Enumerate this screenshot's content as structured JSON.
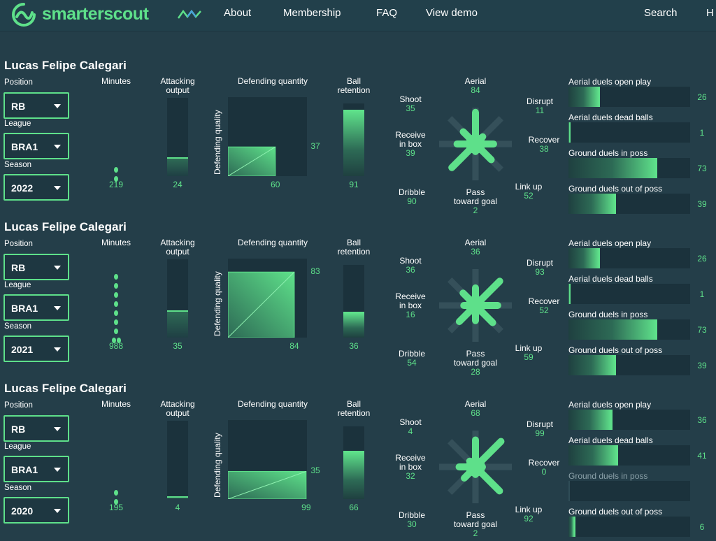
{
  "brand": {
    "name": "smarterscout",
    "color": "#5ee08a"
  },
  "nav": {
    "items": [
      "About",
      "Membership",
      "FAQ",
      "View demo"
    ],
    "right": [
      "Search",
      "H"
    ]
  },
  "labels": {
    "position": "Position",
    "league": "League",
    "season": "Season",
    "minutes": "Minutes",
    "attacking1": "Attacking",
    "attacking2": "output",
    "defqty": "Defending quantity",
    "defqual": "Defending quality",
    "ball1": "Ball",
    "ball2": "retention",
    "aerial": "Aerial",
    "shoot": "Shoot",
    "receive1": "Receive",
    "receive2": "in box",
    "dribble": "Dribble",
    "pass1": "Pass",
    "pass2": "toward goal",
    "disrupt": "Disrupt",
    "recover": "Recover",
    "linkup": "Link up",
    "h1": "Aerial duels open play",
    "h2": "Aerial duels dead balls",
    "h3": "Ground duels in poss",
    "h4": "Ground duels out of poss"
  },
  "panels": [
    {
      "name": "Lucas Felipe Calegari",
      "position": "RB",
      "league": "BRA1",
      "season": "2022",
      "minutes": 219,
      "minutes_dots": 2,
      "attacking": 24,
      "def_qty": 60,
      "def_qual": 37,
      "ball_retention": 91,
      "wheel": {
        "aerial": 84,
        "shoot": 35,
        "receive": 39,
        "dribble": 90,
        "pass": 2,
        "disrupt": 11,
        "recover": 38,
        "linkup": 52
      },
      "duels": [
        26,
        1,
        73,
        39
      ],
      "duels_disabled": [
        false,
        false,
        false,
        false
      ]
    },
    {
      "name": "Lucas Felipe Calegari",
      "position": "RB",
      "league": "BRA1",
      "season": "2021",
      "minutes": 988,
      "minutes_dots": 9,
      "attacking": 35,
      "def_qty": 84,
      "def_qual": 83,
      "ball_retention": 36,
      "wheel": {
        "aerial": 36,
        "shoot": 36,
        "receive": 16,
        "dribble": 54,
        "pass": 28,
        "disrupt": 93,
        "recover": 52,
        "linkup": 59
      },
      "duels": [
        26,
        1,
        73,
        39
      ],
      "duels_disabled": [
        false,
        false,
        false,
        false
      ]
    },
    {
      "name": "Lucas Felipe Calegari",
      "position": "RB",
      "league": "BRA1",
      "season": "2020",
      "minutes": 195,
      "minutes_dots": 2,
      "attacking": 4,
      "def_qty": 99,
      "def_qual": 35,
      "ball_retention": 66,
      "wheel": {
        "aerial": 68,
        "shoot": 4,
        "receive": 32,
        "dribble": 30,
        "pass": 2,
        "disrupt": 99,
        "recover": 0,
        "linkup": 92
      },
      "duels": [
        36,
        41,
        null,
        6
      ],
      "duels_disabled": [
        false,
        false,
        true,
        false
      ]
    }
  ]
}
